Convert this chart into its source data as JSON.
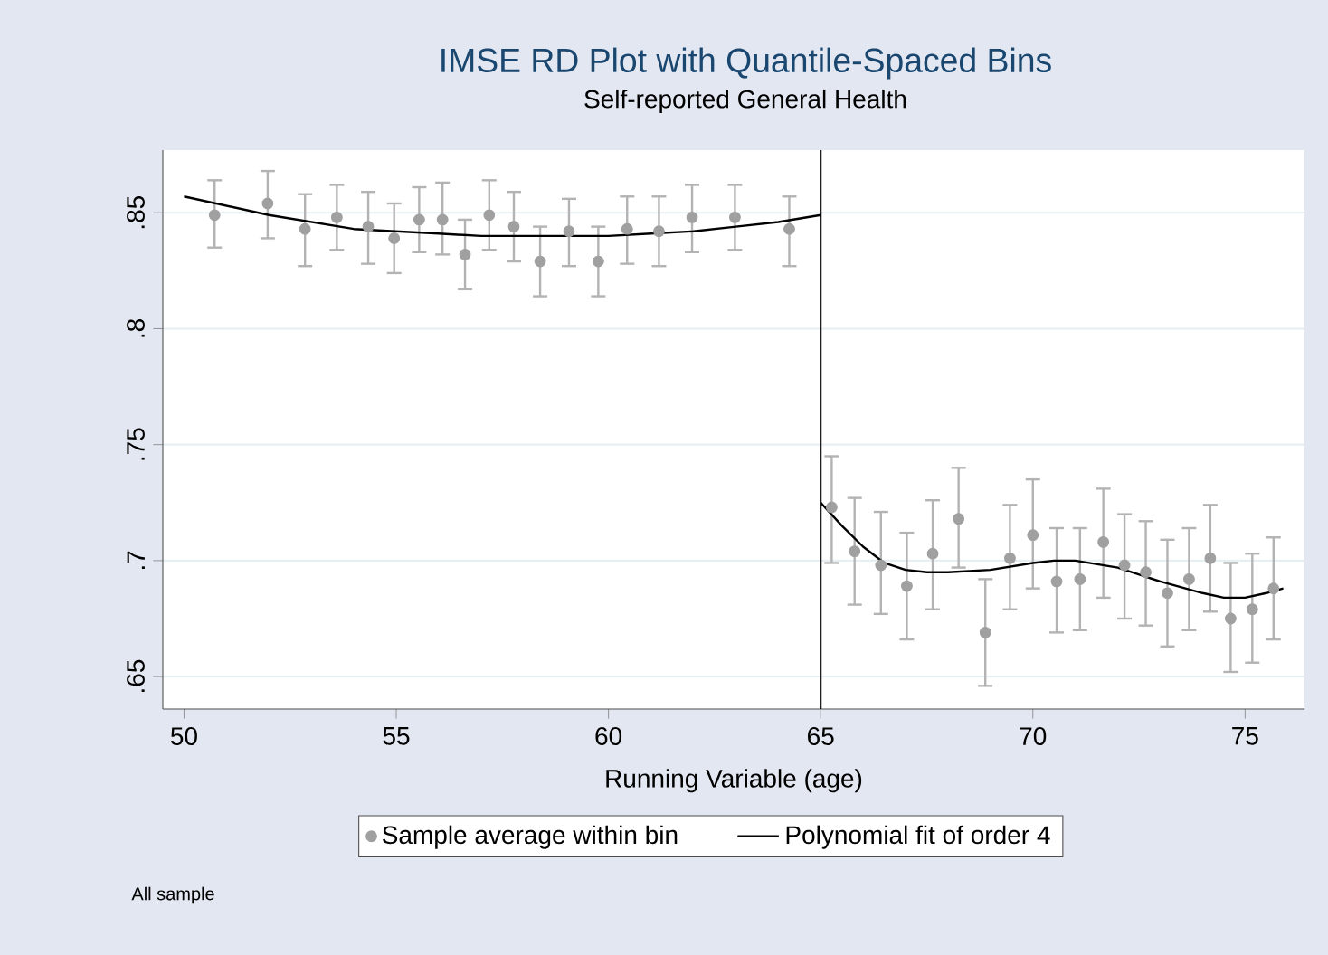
{
  "chart_data": {
    "type": "scatter",
    "title": "IMSE RD Plot with Quantile-Spaced Bins",
    "subtitle": "Self-reported General Health",
    "xlabel": "Running Variable (age)",
    "annotations": [
      "All sample"
    ],
    "xlim": [
      49.5,
      76.4
    ],
    "ylim": [
      0.636,
      0.877
    ],
    "xticks": [
      50,
      55,
      60,
      65,
      70,
      75
    ],
    "yticks": [
      {
        "value": 0.65,
        "label": ".65"
      },
      {
        "value": 0.7,
        "label": ".7"
      },
      {
        "value": 0.75,
        "label": ".75"
      },
      {
        "value": 0.8,
        "label": ".8"
      },
      {
        "value": 0.85,
        "label": ".85"
      }
    ],
    "grid": "y",
    "legend": "bottom",
    "ref_lines": [
      {
        "axis": "x",
        "value": 65,
        "color": "#000000"
      }
    ],
    "series": [
      {
        "name": "Sample average within bin",
        "color": "#a0a0a0",
        "marker": "circle",
        "x": [
          50.72,
          51.97,
          52.85,
          53.6,
          54.34,
          54.95,
          55.54,
          56.09,
          56.62,
          57.19,
          57.77,
          58.39,
          59.07,
          59.76,
          60.44,
          61.19,
          61.97,
          62.98,
          64.26,
          65.26,
          65.8,
          66.42,
          67.03,
          67.64,
          68.25,
          68.88,
          69.46,
          70.0,
          70.56,
          71.11,
          71.66,
          72.16,
          72.66,
          73.17,
          73.68,
          74.18,
          74.66,
          75.17,
          75.67
        ],
        "values": [
          0.849,
          0.854,
          0.843,
          0.848,
          0.844,
          0.839,
          0.847,
          0.847,
          0.832,
          0.849,
          0.844,
          0.829,
          0.842,
          0.829,
          0.843,
          0.842,
          0.848,
          0.848,
          0.843,
          0.723,
          0.704,
          0.698,
          0.689,
          0.703,
          0.718,
          0.669,
          0.701,
          0.711,
          0.691,
          0.692,
          0.708,
          0.698,
          0.695,
          0.686,
          0.692,
          0.701,
          0.675,
          0.679,
          0.688
        ],
        "errors": [
          [
            0.835,
            0.864
          ],
          [
            0.839,
            0.868
          ],
          [
            0.827,
            0.858
          ],
          [
            0.834,
            0.862
          ],
          [
            0.828,
            0.859
          ],
          [
            0.824,
            0.854
          ],
          [
            0.833,
            0.861
          ],
          [
            0.832,
            0.863
          ],
          [
            0.817,
            0.847
          ],
          [
            0.834,
            0.864
          ],
          [
            0.829,
            0.859
          ],
          [
            0.814,
            0.844
          ],
          [
            0.827,
            0.856
          ],
          [
            0.814,
            0.844
          ],
          [
            0.828,
            0.857
          ],
          [
            0.827,
            0.857
          ],
          [
            0.833,
            0.862
          ],
          [
            0.834,
            0.862
          ],
          [
            0.827,
            0.857
          ],
          [
            0.699,
            0.745
          ],
          [
            0.681,
            0.727
          ],
          [
            0.677,
            0.721
          ],
          [
            0.666,
            0.712
          ],
          [
            0.679,
            0.726
          ],
          [
            0.697,
            0.74
          ],
          [
            0.646,
            0.692
          ],
          [
            0.679,
            0.724
          ],
          [
            0.688,
            0.735
          ],
          [
            0.669,
            0.714
          ],
          [
            0.67,
            0.714
          ],
          [
            0.684,
            0.731
          ],
          [
            0.675,
            0.72
          ],
          [
            0.672,
            0.717
          ],
          [
            0.663,
            0.709
          ],
          [
            0.67,
            0.714
          ],
          [
            0.678,
            0.724
          ],
          [
            0.652,
            0.699
          ],
          [
            0.656,
            0.703
          ],
          [
            0.666,
            0.71
          ]
        ]
      },
      {
        "name": "Polynomial fit of order 4",
        "type": "line",
        "color": "#000000",
        "marker": "none",
        "x": [
          50,
          51,
          52,
          53,
          54,
          55,
          56,
          57,
          58,
          59,
          60,
          61,
          62,
          63,
          64,
          65
        ],
        "values": [
          0.857,
          0.853,
          0.849,
          0.846,
          0.843,
          0.842,
          0.841,
          0.84,
          0.84,
          0.84,
          0.84,
          0.841,
          0.842,
          0.844,
          0.846,
          0.849
        ]
      },
      {
        "type": "line",
        "color": "#000000",
        "marker": "none",
        "x": [
          65,
          65.5,
          66,
          66.5,
          67,
          67.5,
          68,
          69,
          70,
          70.5,
          71,
          72,
          73,
          74,
          74.5,
          75,
          75.5,
          75.9
        ],
        "values": [
          0.725,
          0.715,
          0.706,
          0.699,
          0.696,
          0.695,
          0.695,
          0.696,
          0.699,
          0.7,
          0.7,
          0.697,
          0.691,
          0.686,
          0.684,
          0.684,
          0.686,
          0.688
        ]
      }
    ]
  }
}
